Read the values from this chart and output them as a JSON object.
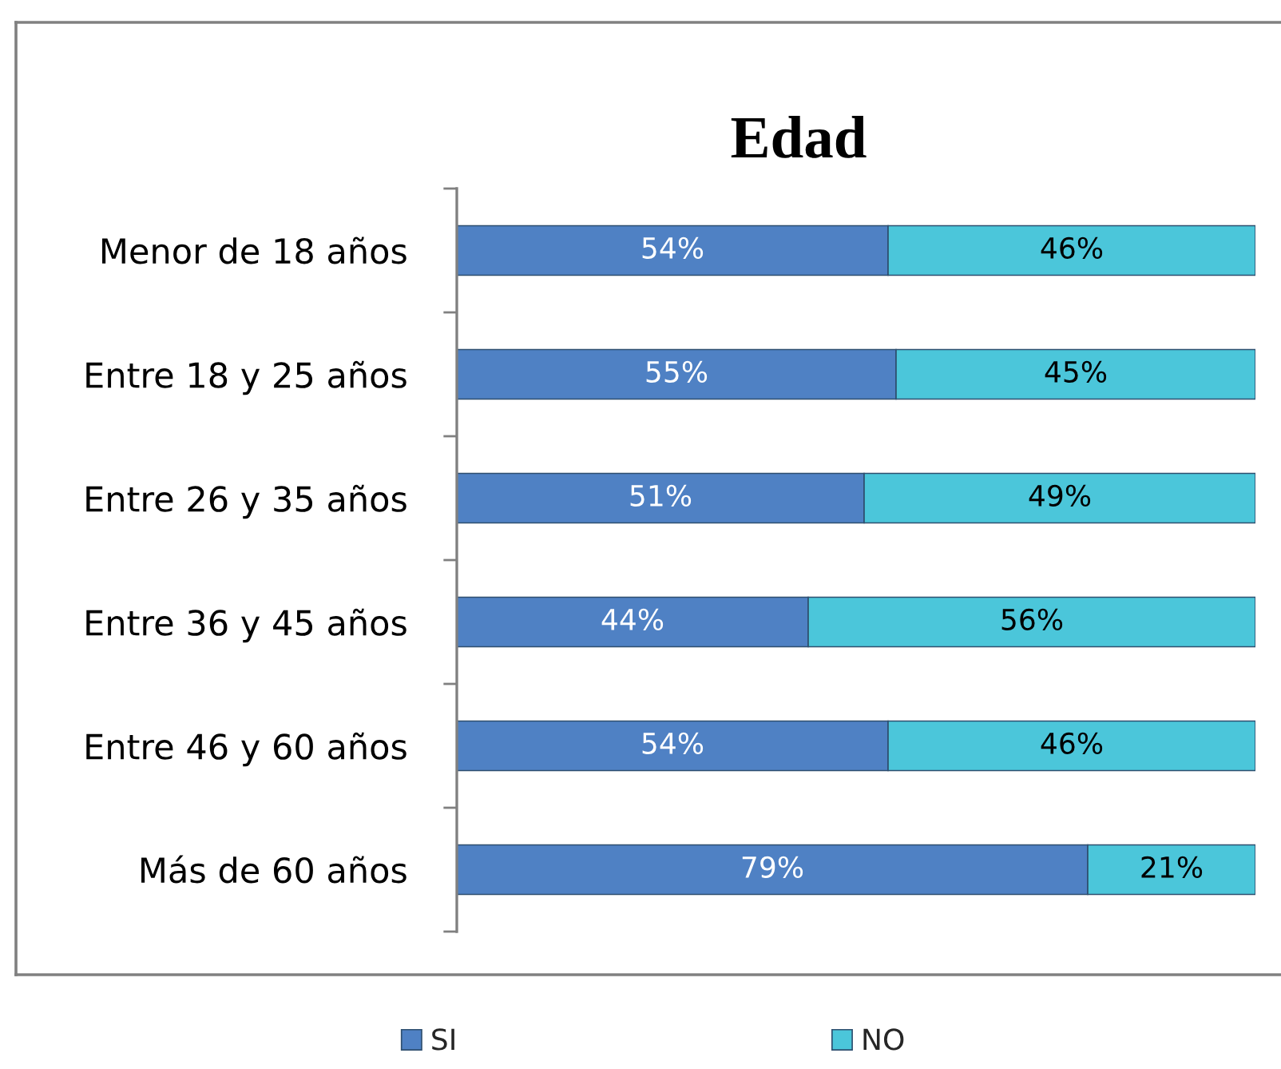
{
  "chart_data": {
    "type": "bar",
    "orientation": "horizontal",
    "stacked": true,
    "title": "Edad",
    "categories": [
      "Menor de 18 años",
      "Entre 18 y 25 años",
      "Entre 26 y 35 años",
      "Entre 36 y 45 años",
      "Entre 46 y 60 años",
      "Más de 60 años"
    ],
    "series": [
      {
        "name": "SI",
        "color": "#4f81c4",
        "values": [
          54,
          55,
          51,
          44,
          54,
          79
        ],
        "value_labels": [
          "54%",
          "55%",
          "51%",
          "44%",
          "54%",
          "79%"
        ]
      },
      {
        "name": "NO",
        "color": "#4bc6da",
        "values": [
          46,
          45,
          49,
          56,
          46,
          21
        ],
        "value_labels": [
          "46%",
          "45%",
          "49%",
          "56%",
          "46%",
          "21%"
        ]
      }
    ],
    "xlim": [
      0,
      100
    ],
    "tick_labels": "y",
    "legend": "bottom"
  }
}
